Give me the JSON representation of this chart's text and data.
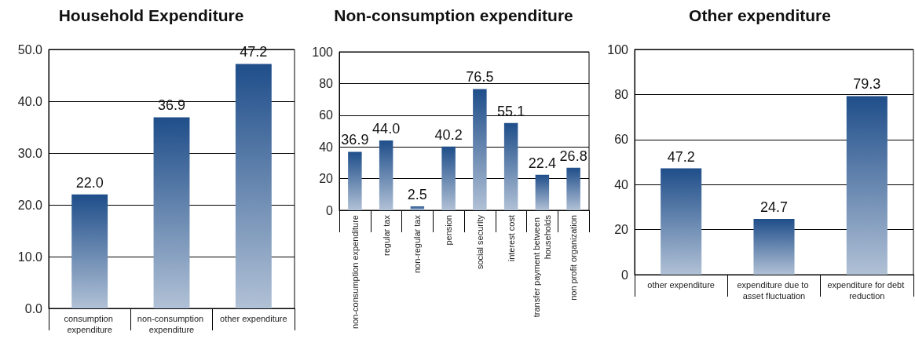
{
  "chart_data": [
    {
      "type": "bar",
      "title": "Household Expenditure",
      "categories": [
        "consumption expenditure",
        "non-consumption expenditure",
        "other expenditure"
      ],
      "values": [
        22.0,
        36.9,
        47.2
      ],
      "value_labels": [
        "22.0",
        "36.9",
        "47.2"
      ],
      "color": "#1f4e8a",
      "ylim": [
        0,
        50
      ],
      "yticks": [
        {
          "value": 0,
          "label": "0.0"
        },
        {
          "value": 10,
          "label": "10.0"
        },
        {
          "value": 20,
          "label": "20.0"
        },
        {
          "value": 30,
          "label": "30.0"
        },
        {
          "value": 40,
          "label": "40.0"
        },
        {
          "value": 50,
          "label": "50.0"
        }
      ],
      "grid": "y"
    },
    {
      "type": "bar",
      "title": "Non-consumption expenditure",
      "categories": [
        "non-consumption expenditure",
        "regular tax",
        "non-regular tax",
        "pension",
        "social security",
        "interest cost",
        "transfer payment between households",
        "non profit organization"
      ],
      "values": [
        36.9,
        44.0,
        2.5,
        40.2,
        76.5,
        55.1,
        22.4,
        26.8
      ],
      "value_labels": [
        "36.9",
        "44.0",
        "2.5",
        "40.2",
        "76.5",
        "55.1",
        "22.4",
        "26.8"
      ],
      "color": "#1f4e8a",
      "ylim": [
        0,
        100
      ],
      "yticks": [
        0,
        20,
        40,
        60,
        80,
        100
      ],
      "grid": "y"
    },
    {
      "type": "bar",
      "title": "Other expenditure",
      "categories": [
        "other expenditure",
        "expenditure due to asset fluctuation",
        "expenditure for debt reduction"
      ],
      "values": [
        47.2,
        24.7,
        79.3
      ],
      "value_labels": [
        "47.2",
        "24.7",
        "79.3"
      ],
      "color": "#1f4e8a",
      "ylim": [
        0,
        100
      ],
      "yticks": [
        0,
        20,
        40,
        60,
        80,
        100
      ],
      "grid": "y"
    }
  ]
}
